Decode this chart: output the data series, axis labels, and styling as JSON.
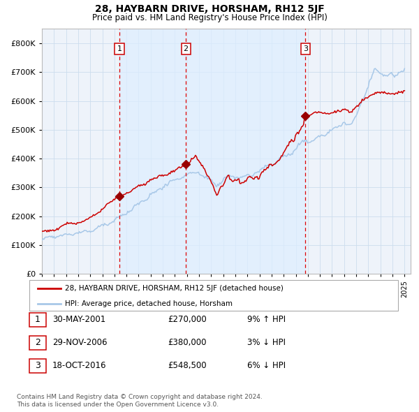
{
  "title": "28, HAYBARN DRIVE, HORSHAM, RH12 5JF",
  "subtitle": "Price paid vs. HM Land Registry's House Price Index (HPI)",
  "legend_line1": "28, HAYBARN DRIVE, HORSHAM, RH12 5JF (detached house)",
  "legend_line2": "HPI: Average price, detached house, Horsham",
  "transactions": [
    {
      "num": 1,
      "date": "30-MAY-2001",
      "price": 270000,
      "pct": "9%",
      "dir": "↑",
      "x_year": 2001.41
    },
    {
      "num": 2,
      "date": "29-NOV-2006",
      "price": 380000,
      "pct": "3%",
      "dir": "↓",
      "x_year": 2006.91
    },
    {
      "num": 3,
      "date": "18-OCT-2016",
      "price": 548500,
      "pct": "6%",
      "dir": "↓",
      "x_year": 2016.79
    }
  ],
  "footer_line1": "Contains HM Land Registry data © Crown copyright and database right 2024.",
  "footer_line2": "This data is licensed under the Open Government Licence v3.0.",
  "hpi_color": "#a8c8e8",
  "price_color": "#cc0000",
  "marker_color": "#990000",
  "dashed_color": "#dd0000",
  "shade_color": "#ddeeff",
  "grid_color": "#ccddee",
  "background_color": "#eef3fa",
  "ylim": [
    0,
    850000
  ],
  "yticks": [
    0,
    100000,
    200000,
    300000,
    400000,
    500000,
    600000,
    700000,
    800000
  ],
  "xlim_start": 1995,
  "xlim_end": 2025.5
}
